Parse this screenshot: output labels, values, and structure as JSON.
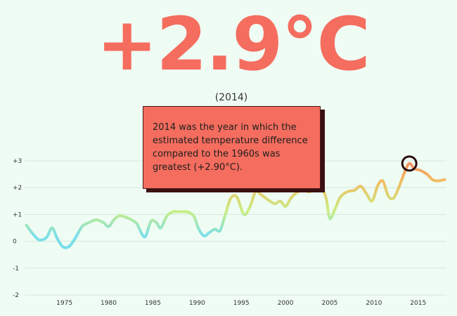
{
  "headline": "+2.9°C",
  "year_label": "(2014)",
  "callout": "2014 was the year in which the estimated temperature difference compared to the 1960s was greatest (+2.90°C).",
  "colors": {
    "accent": "#f46d5e",
    "cool": "#7ddfe8",
    "mid": "#c9ee85",
    "warm": "#f4b860"
  },
  "chart_data": {
    "type": "line",
    "title": "",
    "xlabel": "",
    "ylabel": "",
    "xlim": [
      1970.5,
      2018.2
    ],
    "ylim": [
      -2,
      3.3
    ],
    "grid": true,
    "y_ticks": [
      {
        "value": 3,
        "label": "+3"
      },
      {
        "value": 2,
        "label": "+2"
      },
      {
        "value": 1,
        "label": "+1"
      },
      {
        "value": 0,
        "label": "0"
      },
      {
        "value": -1,
        "label": "-1"
      },
      {
        "value": -2,
        "label": "-2"
      }
    ],
    "x_ticks": [
      1975,
      1980,
      1985,
      1990,
      1995,
      2000,
      2005,
      2010,
      2015
    ],
    "highlight": {
      "x": 2014,
      "y": 2.9
    },
    "x": [
      1970.7,
      1971.5,
      1972.2,
      1973.0,
      1973.6,
      1974.2,
      1974.8,
      1975.5,
      1976.2,
      1977.0,
      1977.8,
      1978.6,
      1979.4,
      1980.0,
      1980.6,
      1981.2,
      1981.9,
      1982.6,
      1983.2,
      1983.8,
      1984.2,
      1984.8,
      1985.4,
      1985.9,
      1986.6,
      1987.3,
      1988.0,
      1988.8,
      1989.6,
      1990.2,
      1990.8,
      1991.3,
      1992.0,
      1992.6,
      1993.2,
      1993.8,
      1994.5,
      1995.3,
      1996.0,
      1996.6,
      1997.2,
      1998.0,
      1998.8,
      1999.4,
      2000.0,
      2000.6,
      2001.2,
      2002.0,
      2002.8,
      2003.4,
      2004.0,
      2004.6,
      2005.0,
      2005.6,
      2006.2,
      2007.0,
      2007.8,
      2008.5,
      2009.2,
      2009.8,
      2010.4,
      2011.0,
      2011.6,
      2012.2,
      2012.8,
      2013.5,
      2014.0,
      2014.6,
      2015.2,
      2016.0,
      2016.6,
      2017.2,
      2018.0
    ],
    "y": [
      0.6,
      0.25,
      0.05,
      0.15,
      0.5,
      0.1,
      -0.2,
      -0.2,
      0.1,
      0.55,
      0.7,
      0.8,
      0.7,
      0.55,
      0.8,
      0.95,
      0.9,
      0.8,
      0.65,
      0.25,
      0.2,
      0.75,
      0.7,
      0.5,
      0.95,
      1.1,
      1.1,
      1.1,
      0.95,
      0.45,
      0.2,
      0.3,
      0.45,
      0.4,
      1.0,
      1.6,
      1.65,
      1.0,
      1.3,
      1.85,
      1.75,
      1.55,
      1.4,
      1.5,
      1.3,
      1.6,
      1.8,
      1.9,
      1.85,
      2.15,
      2.05,
      1.6,
      0.85,
      1.2,
      1.65,
      1.85,
      1.9,
      2.05,
      1.75,
      1.5,
      2.05,
      2.25,
      1.7,
      1.6,
      2.0,
      2.6,
      2.9,
      2.7,
      2.65,
      2.5,
      2.3,
      2.25,
      2.3
    ]
  }
}
